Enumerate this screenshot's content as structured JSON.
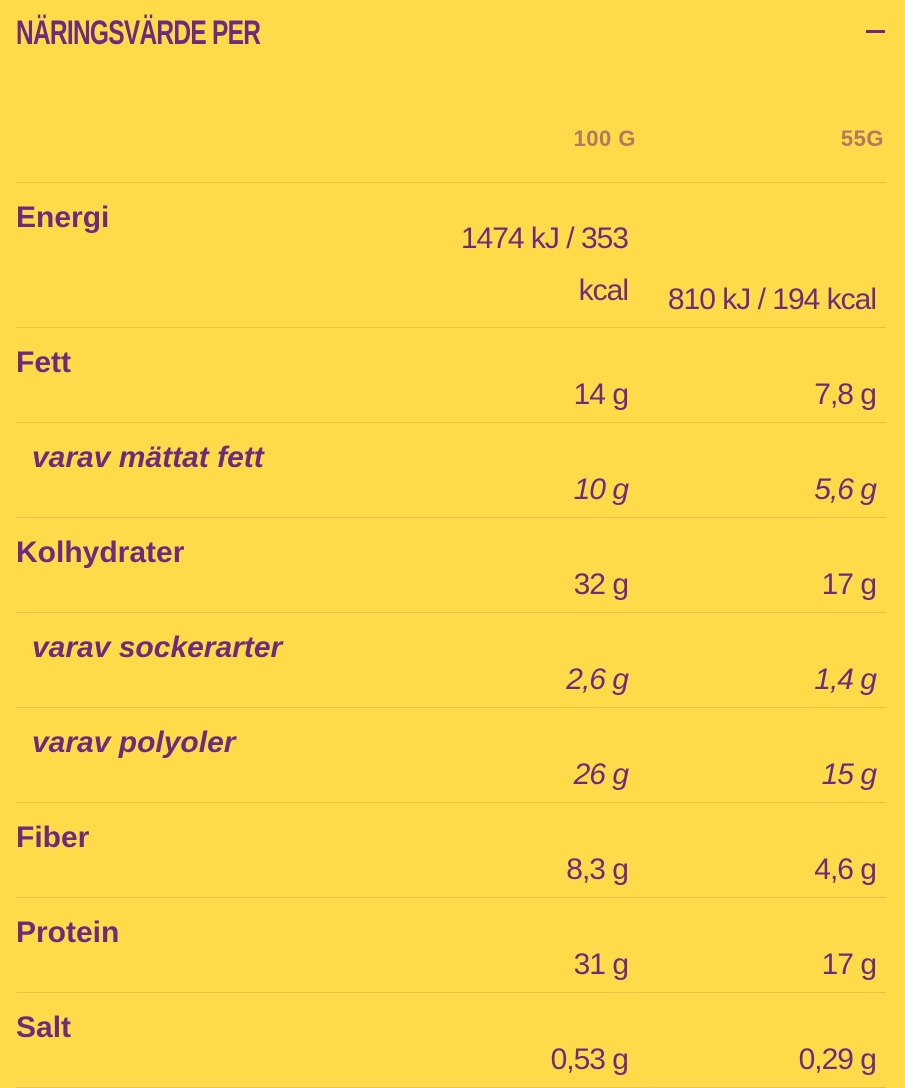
{
  "title": "NÄRINGSVÄRDE PER",
  "collapse_icon": "minus-icon",
  "columns": [
    "100 G",
    "55G"
  ],
  "colors": {
    "background": "#FFDB4A",
    "text": "#6B2C7E",
    "column_header": "#B07A60"
  },
  "rows": [
    {
      "label": "Energi",
      "v100": "1474 kJ / 353 kcal",
      "v55": "810 kJ / 194 kcal"
    },
    {
      "label": "Fett",
      "v100": "14 g",
      "v55": "7,8 g"
    },
    {
      "label": "varav mättat fett",
      "v100": "10 g",
      "v55": "5,6 g"
    },
    {
      "label": "Kolhydrater",
      "v100": "32 g",
      "v55": "17 g"
    },
    {
      "label": "varav sockerarter",
      "v100": "2,6 g",
      "v55": "1,4 g"
    },
    {
      "label": "varav polyoler",
      "v100": "26 g",
      "v55": "15 g"
    },
    {
      "label": "Fiber",
      "v100": "8,3 g",
      "v55": "4,6 g"
    },
    {
      "label": "Protein",
      "v100": "31 g",
      "v55": "17 g"
    },
    {
      "label": "Salt",
      "v100": "0,53 g",
      "v55": "0,29 g"
    }
  ]
}
